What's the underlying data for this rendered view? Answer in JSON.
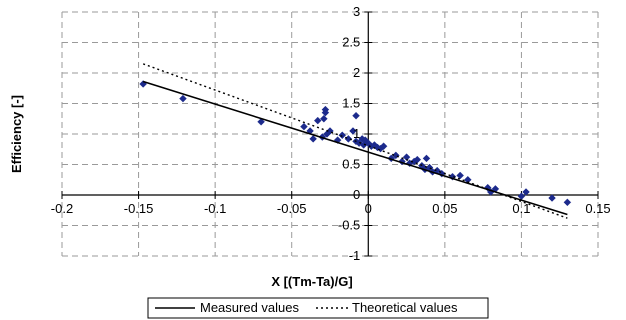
{
  "chart_data": {
    "type": "scatter",
    "title": "",
    "xlabel": "X [(Tm-Ta)/G]",
    "ylabel": "Efficiency [-]",
    "xlim": [
      -0.2,
      0.15
    ],
    "ylim": [
      -1,
      3
    ],
    "x_ticks": [
      -0.2,
      -0.15,
      -0.1,
      -0.05,
      0,
      0.05,
      0.1,
      0.15
    ],
    "y_ticks": [
      -1,
      -0.5,
      0,
      0.5,
      1,
      1.5,
      2,
      2.5,
      3
    ],
    "x_tick_labels": [
      "-0.2",
      "-0.15",
      "-0.1",
      "-0.05",
      "0",
      "0.05",
      "0.1",
      "0.15"
    ],
    "y_tick_labels": [
      "-1",
      "-0.5",
      "0",
      "0.5",
      "1",
      "1.5",
      "2",
      "2.5",
      "3"
    ],
    "grid": true,
    "legend_position": "bottom",
    "colors": {
      "points": "#1c2a8c",
      "measured_line": "#000000",
      "theoretical_line": "#000000",
      "grid": "#9a9a9a"
    },
    "series": [
      {
        "name": "",
        "kind": "points",
        "x": [
          -0.147,
          -0.121,
          -0.07,
          -0.042,
          -0.038,
          -0.036,
          -0.033,
          -0.03,
          -0.029,
          -0.027,
          -0.025,
          -0.02,
          -0.017,
          -0.013,
          -0.01,
          -0.008,
          -0.006,
          -0.004,
          -0.003,
          -0.002,
          0,
          0.002,
          0.004,
          0.006,
          0.008,
          0.01,
          0.015,
          0.018,
          0.022,
          0.025,
          0.027,
          0.03,
          0.032,
          0.035,
          0.037,
          0.038,
          0.04,
          0.042,
          0.045,
          0.048,
          0.055,
          0.06,
          0.065,
          0.078,
          0.08,
          0.083,
          0.1,
          0.103,
          0.12,
          0.13,
          -0.028,
          -0.008,
          -0.028
        ],
        "y": [
          1.82,
          1.58,
          1.2,
          1.12,
          1.05,
          0.92,
          1.22,
          0.95,
          1.25,
          1.0,
          1.05,
          0.9,
          0.98,
          0.92,
          1.05,
          0.88,
          0.85,
          0.92,
          0.82,
          0.9,
          0.85,
          0.8,
          0.82,
          0.78,
          0.76,
          0.8,
          0.6,
          0.65,
          0.55,
          0.62,
          0.52,
          0.55,
          0.58,
          0.48,
          0.42,
          0.6,
          0.45,
          0.38,
          0.4,
          0.35,
          0.3,
          0.32,
          0.25,
          0.12,
          0.05,
          0.1,
          -0.02,
          0.05,
          -0.05,
          -0.12,
          1.4,
          1.3,
          1.35
        ]
      },
      {
        "name": "Measured values",
        "kind": "solid-line",
        "x": [
          -0.147,
          0.13
        ],
        "y": [
          1.86,
          -0.32
        ]
      },
      {
        "name": "Theoretical values",
        "kind": "dotted-line",
        "x": [
          -0.147,
          0.13
        ],
        "y": [
          2.15,
          -0.38
        ]
      }
    ],
    "legend": [
      "Measured values",
      "Theoretical values"
    ]
  }
}
